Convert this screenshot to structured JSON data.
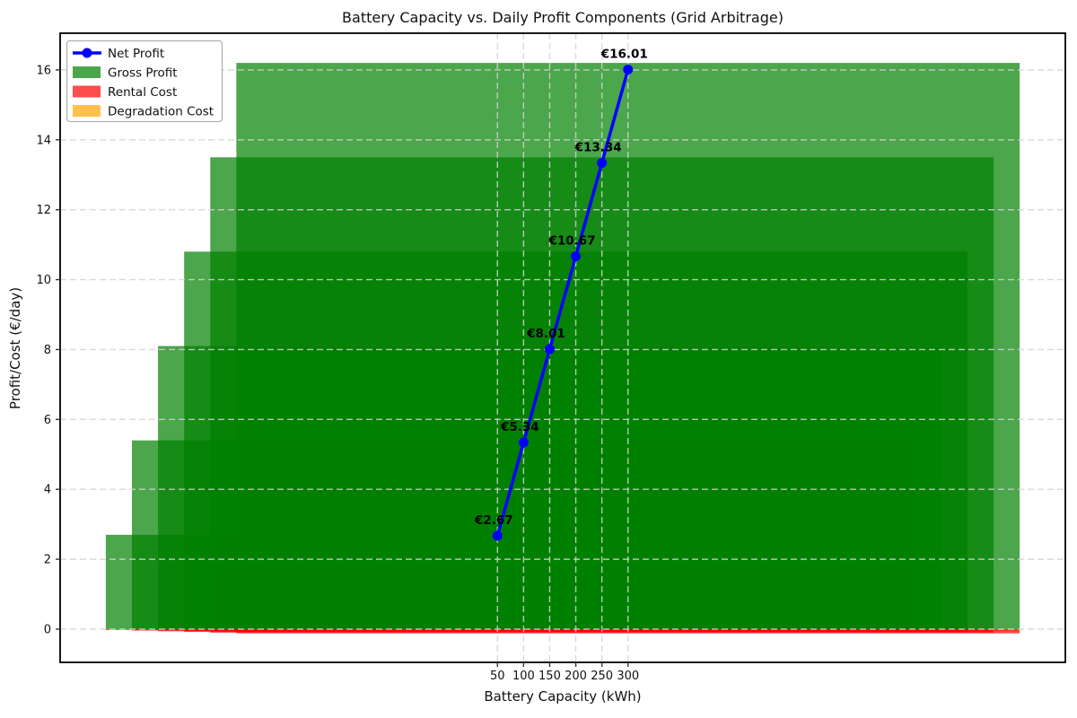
{
  "figure": {
    "kind": "matplotlib-chart",
    "background": "#ffffff"
  },
  "chart_data": {
    "type": "bar+line",
    "title": "Battery Capacity vs. Daily Profit Components (Grid Arbitrage)",
    "xlabel": "Battery Capacity (kWh)",
    "ylabel": "Profit/Cost (€/day)",
    "categories": [
      50,
      100,
      150,
      200,
      250,
      300
    ],
    "bar_width_data_units": 1500,
    "bar_alpha": 0.7,
    "series": [
      {
        "name": "Net Profit",
        "type": "line",
        "color": "#0000ff",
        "values": [
          2.67,
          5.34,
          8.01,
          10.67,
          13.34,
          16.01
        ]
      },
      {
        "name": "Gross Profit",
        "type": "bar",
        "color": "#008000",
        "values": [
          2.7,
          5.4,
          8.1,
          10.8,
          13.5,
          16.2
        ]
      },
      {
        "name": "Rental Cost",
        "type": "bar",
        "color": "#ff0000",
        "values": [
          -0.02,
          -0.04,
          -0.06,
          -0.08,
          -0.1,
          -0.12
        ]
      },
      {
        "name": "Degradation Cost",
        "type": "bar",
        "color": "#ffa500",
        "values": [
          -0.01,
          -0.02,
          -0.03,
          -0.04,
          -0.05,
          -0.06
        ]
      }
    ],
    "annotations": [
      "€2.67",
      "€5.34",
      "€8.01",
      "€10.67",
      "€13.34",
      "€16.01"
    ],
    "xticks": [
      50,
      100,
      150,
      200,
      250,
      300
    ],
    "yticks": [
      0,
      2,
      4,
      6,
      8,
      10,
      12,
      14,
      16
    ],
    "xlim": [
      -787.5,
      1137.5
    ],
    "ylim": [
      -0.95,
      17.05
    ],
    "grid": true,
    "grid_style": "dashed",
    "grid_color": "#d3d3d3",
    "legend_position": "upper left",
    "legend_entries": [
      "Net Profit",
      "Gross Profit",
      "Rental Cost",
      "Degradation Cost"
    ]
  }
}
